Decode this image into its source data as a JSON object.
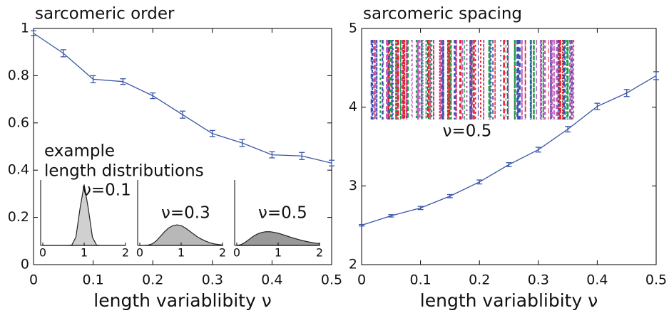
{
  "chart_data": [
    {
      "type": "line",
      "title": "sarcomeric order",
      "xlabel": "length variablibity ν",
      "x": [
        0,
        0.05,
        0.1,
        0.15,
        0.2,
        0.25,
        0.3,
        0.35,
        0.4,
        0.45,
        0.5
      ],
      "values": [
        0.98,
        0.895,
        0.785,
        0.775,
        0.715,
        0.635,
        0.555,
        0.515,
        0.465,
        0.46,
        0.43
      ],
      "errors": [
        0.01,
        0.015,
        0.015,
        0.012,
        0.012,
        0.015,
        0.013,
        0.015,
        0.013,
        0.015,
        0.012
      ],
      "color": "#3a56a8",
      "xlim": [
        0,
        0.5
      ],
      "ylim": [
        0,
        1
      ],
      "xticks": [
        0,
        0.1,
        0.2,
        0.3,
        0.4,
        0.5
      ],
      "yticks": [
        0,
        0.2,
        0.4,
        0.6,
        0.8,
        1
      ],
      "inset_title": [
        "example",
        "length distributions"
      ],
      "insets": [
        {
          "label": "ν=0.1",
          "color": "#d0d0d0",
          "xlim": [
            0,
            2
          ],
          "ylim": [
            0,
            4.2
          ],
          "xticks": [
            0,
            1,
            2
          ],
          "x": [
            0,
            0.1,
            0.2,
            0.3,
            0.4,
            0.5,
            0.6,
            0.7,
            0.8,
            0.9,
            1,
            1.1,
            1.2,
            1.3,
            1.4,
            1.5,
            1.6,
            1.7,
            1.8,
            1.9,
            2
          ],
          "values": [
            0,
            0,
            0,
            0,
            0,
            0,
            0,
            0.02,
            0.54,
            2.42,
            3.99,
            2.42,
            0.54,
            0.02,
            0,
            0,
            0,
            0,
            0,
            0,
            0
          ]
        },
        {
          "label": "ν=0.3",
          "color": "#b8b8b8",
          "xlim": [
            0,
            2
          ],
          "ylim": [
            0,
            4.2
          ],
          "xticks": [
            0,
            1,
            2
          ],
          "x": [
            0,
            0.1,
            0.2,
            0.3,
            0.4,
            0.5,
            0.6,
            0.7,
            0.8,
            0.9,
            1,
            1.1,
            1.2,
            1.3,
            1.4,
            1.5,
            1.6,
            1.7,
            1.8,
            1.9,
            2
          ],
          "values": [
            0,
            0,
            0.02,
            0.1,
            0.3,
            0.6,
            0.9,
            1.15,
            1.3,
            1.35,
            1.3,
            1.15,
            0.95,
            0.75,
            0.55,
            0.4,
            0.27,
            0.17,
            0.1,
            0.06,
            0.03
          ]
        },
        {
          "label": "ν=0.5",
          "color": "#999999",
          "xlim": [
            0,
            2
          ],
          "ylim": [
            0,
            4.2
          ],
          "xticks": [
            0,
            1,
            2
          ],
          "x": [
            0,
            0.1,
            0.2,
            0.3,
            0.4,
            0.5,
            0.6,
            0.7,
            0.8,
            0.9,
            1,
            1.1,
            1.2,
            1.3,
            1.4,
            1.5,
            1.6,
            1.7,
            1.8,
            1.9,
            2
          ],
          "values": [
            0,
            0.05,
            0.2,
            0.4,
            0.6,
            0.75,
            0.85,
            0.9,
            0.9,
            0.86,
            0.8,
            0.72,
            0.63,
            0.54,
            0.46,
            0.38,
            0.31,
            0.25,
            0.2,
            0.15,
            0.12
          ]
        }
      ]
    },
    {
      "type": "line",
      "title": "sarcomeric spacing",
      "xlabel": "length variablibity ν",
      "x": [
        0,
        0.05,
        0.1,
        0.15,
        0.2,
        0.25,
        0.3,
        0.35,
        0.4,
        0.45,
        0.5
      ],
      "values": [
        2.5,
        2.62,
        2.72,
        2.87,
        3.05,
        3.27,
        3.46,
        3.72,
        4.01,
        4.18,
        4.4
      ],
      "errors": [
        0.01,
        0.015,
        0.02,
        0.02,
        0.025,
        0.025,
        0.03,
        0.035,
        0.04,
        0.045,
        0.05
      ],
      "color": "#3a56a8",
      "xlim": [
        0,
        0.5
      ],
      "ylim": [
        2,
        5
      ],
      "xticks": [
        0,
        0.1,
        0.2,
        0.3,
        0.4,
        0.5
      ],
      "yticks": [
        2,
        3,
        4,
        5
      ],
      "image_label": "ν=0.5"
    }
  ]
}
